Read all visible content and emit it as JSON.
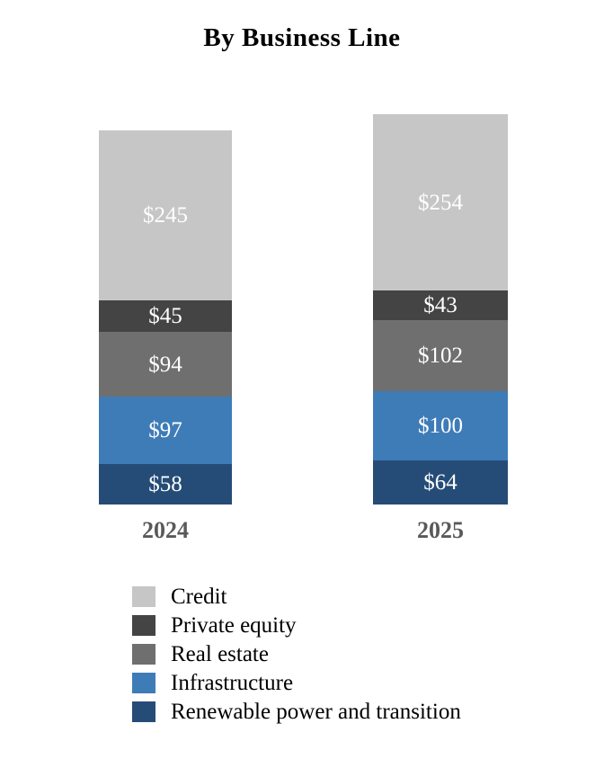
{
  "chart_data": {
    "type": "bar",
    "variant": "stacked-vertical",
    "title": "By Business Line",
    "categories": [
      "2024",
      "2025"
    ],
    "series": [
      {
        "name": "Credit",
        "color": "#C6C6C6",
        "values": [
          245,
          254
        ],
        "labels": [
          "$245",
          "$254"
        ]
      },
      {
        "name": "Private equity",
        "color": "#444444",
        "values": [
          45,
          43
        ],
        "labels": [
          "$45",
          "$43"
        ]
      },
      {
        "name": "Real estate",
        "color": "#6F6F6F",
        "values": [
          94,
          102
        ],
        "labels": [
          "$94",
          "$102"
        ]
      },
      {
        "name": "Infrastructure",
        "color": "#3E7CB8",
        "values": [
          97,
          100
        ],
        "labels": [
          "$97",
          "$100"
        ]
      },
      {
        "name": "Renewable power and transition",
        "color": "#254C77",
        "values": [
          58,
          64
        ],
        "labels": [
          "$58",
          "$64"
        ]
      }
    ],
    "totals": [
      539,
      563
    ],
    "value_prefix": "$",
    "stack_order": "top_to_bottom_as_listed",
    "legend_position": "bottom-left",
    "axis_label_color": "#595959",
    "value_label_color": "#ffffff",
    "background_color": "#ffffff"
  }
}
